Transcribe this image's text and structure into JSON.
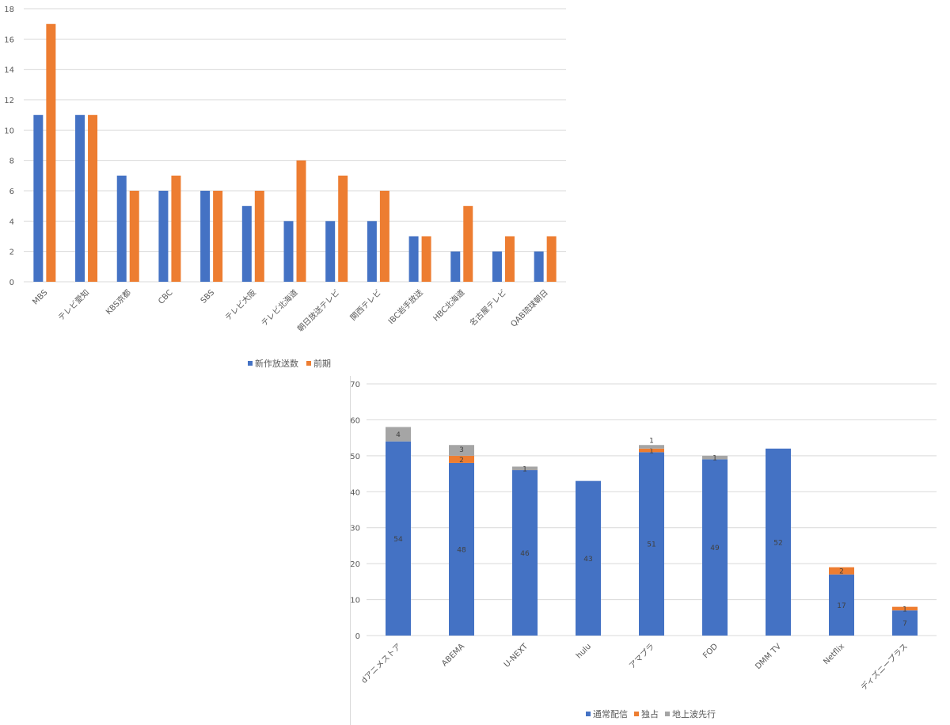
{
  "chart_data": [
    {
      "type": "bar",
      "categories": [
        "MBS",
        "テレビ愛知",
        "KBS京都",
        "CBC",
        "SBS",
        "テレビ大阪",
        "テレビ北海道",
        "朝日放送テレビ",
        "関西テレビ",
        "IBC岩手放送",
        "HBC北海道",
        "名古屋テレビ",
        "QAB琉球朝日"
      ],
      "series": [
        {
          "name": "新作放送数",
          "color": "#4472C4",
          "values": [
            11,
            11,
            7,
            6,
            6,
            5,
            4,
            4,
            4,
            3,
            2,
            2,
            2
          ]
        },
        {
          "name": "前期",
          "color": "#ED7D31",
          "values": [
            17,
            11,
            6,
            7,
            6,
            6,
            8,
            7,
            6,
            3,
            5,
            3,
            3
          ]
        }
      ],
      "ylim": [
        0,
        18
      ],
      "yticks": [
        0,
        2,
        4,
        6,
        8,
        10,
        12,
        14,
        16,
        18
      ],
      "grid": true,
      "legend": "bottom"
    },
    {
      "type": "bar",
      "stacked": true,
      "categories": [
        "dアニメストア",
        "ABEMA",
        "U-NEXT",
        "hulu",
        "アマプラ",
        "FOD",
        "DMM TV",
        "Netflix",
        "ディズニープラス"
      ],
      "series": [
        {
          "name": "通常配信",
          "color": "#4472C4",
          "values": [
            54,
            48,
            46,
            43,
            51,
            49,
            52,
            17,
            7
          ]
        },
        {
          "name": "独占",
          "color": "#ED7D31",
          "values": [
            0,
            2,
            0,
            0,
            1,
            0,
            0,
            2,
            1
          ]
        },
        {
          "name": "地上波先行",
          "color": "#A5A5A5",
          "values": [
            4,
            3,
            1,
            0,
            1,
            1,
            0,
            0,
            0
          ]
        }
      ],
      "ylim": [
        0,
        70
      ],
      "yticks": [
        0,
        10,
        20,
        30,
        40,
        50,
        60,
        70
      ],
      "grid": true,
      "data_labels": true,
      "legend": "bottom"
    }
  ]
}
